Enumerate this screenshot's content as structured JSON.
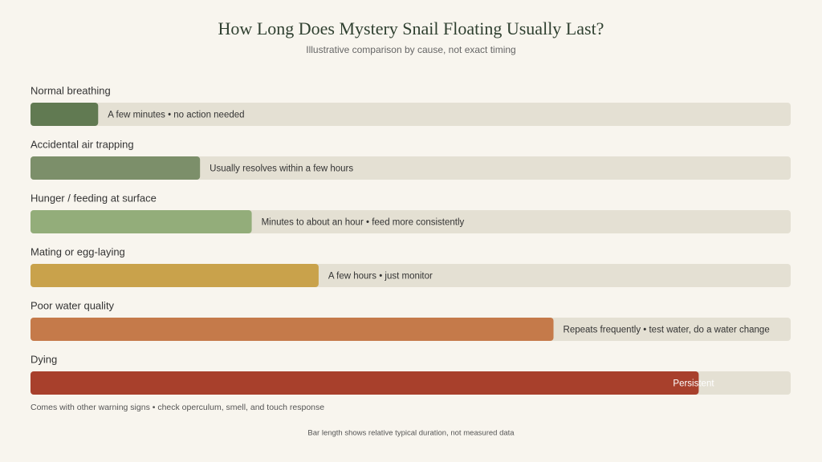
{
  "chart_data": {
    "type": "bar",
    "orientation": "horizontal",
    "title": "How Long Does Mystery Snail Floating Usually Last?",
    "subtitle": "Illustrative comparison by cause, not exact timing",
    "categories": [
      "Normal breathing",
      "Accidental air trapping",
      "Hunger / feeding at surface",
      "Mating or egg-laying",
      "Poor water quality",
      "Dying"
    ],
    "values": [
      8.9,
      22.3,
      29.1,
      37.9,
      68.8,
      87.9
    ],
    "xlim": [
      0,
      100
    ],
    "colors": [
      "#617a52",
      "#7c8f6a",
      "#93ad7a",
      "#c9a24b",
      "#c57a4a",
      "#a8402c"
    ],
    "annotations": [
      "A few minutes • no action needed",
      "Usually resolves within a few hours",
      "Minutes to about an hour • feed more consistently",
      "A few hours • just monitor",
      "Repeats frequently • test water, do a water change",
      "Persistent"
    ],
    "extra_note": "Comes with other warning signs • check operculum, smell, and touch response",
    "footer": "Bar length shows relative typical duration, not measured data"
  }
}
